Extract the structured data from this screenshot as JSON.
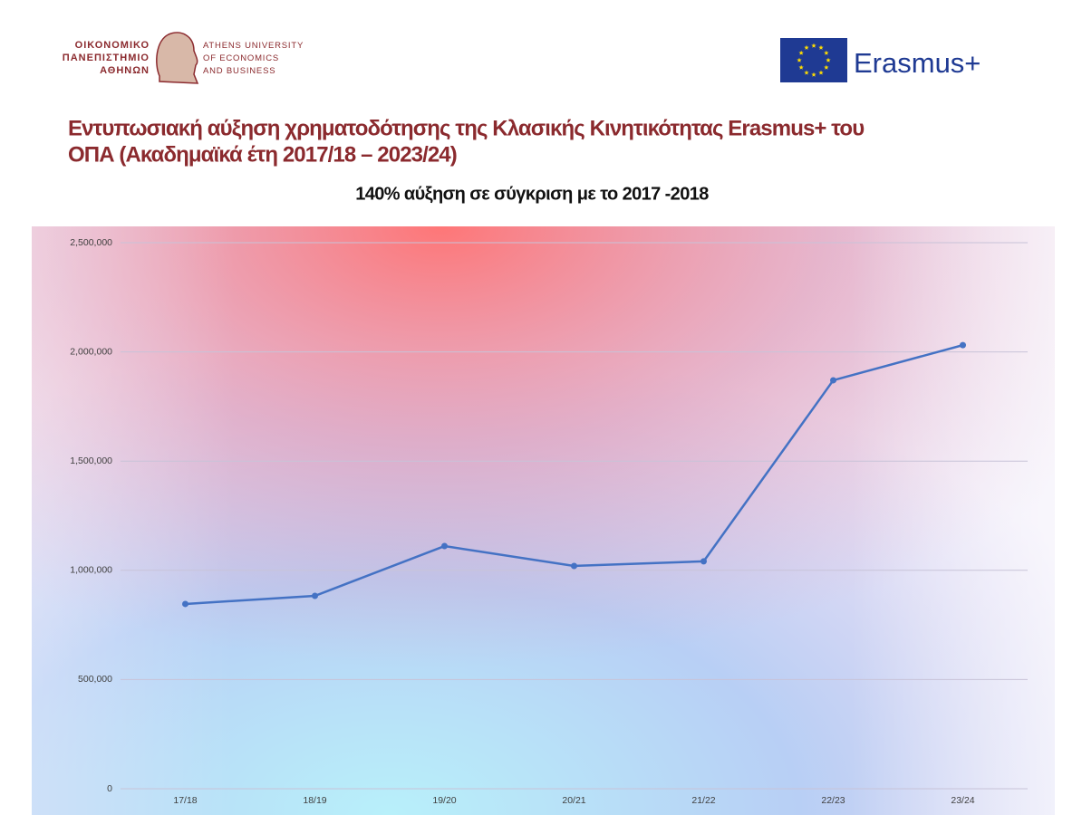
{
  "header": {
    "university_logo_greek": [
      "ΟΙΚΟΝΟΜΙΚΟ",
      "ΠΑΝΕΠΙΣΤΗΜΙΟ",
      "ΑΘΗΝΩΝ"
    ],
    "university_logo_english": [
      "ATHENS UNIVERSITY",
      "OF ECONOMICS",
      "AND BUSINESS"
    ],
    "program_logo": "Erasmus+",
    "slide_title": [
      "Εντυπωσιακή αύξηση χρηματοδότησης της Κλασικής Κινητικότητας Erasmus+ του",
      "ΟΠΑ (Ακαδημαϊκά έτη 2017/18 – 2023/24)"
    ]
  },
  "chart_data": {
    "type": "line",
    "title": "140% αύξηση σε σύγκριση με το 2017 -2018",
    "categories": [
      "17/18",
      "18/19",
      "19/20",
      "20/21",
      "21/22",
      "22/23",
      "23/24"
    ],
    "values": [
      846000,
      883000,
      1111000,
      1020000,
      1041000,
      1870000,
      2031000
    ],
    "color": "#4472c4",
    "ylim": [
      0,
      2500000
    ],
    "yticks": [
      0,
      {
        "value": 500000,
        "label": "500,000"
      },
      {
        "value": 1000000,
        "label": "1,000,000"
      },
      {
        "value": 1500000,
        "label": "1,500,000"
      },
      {
        "value": 2000000,
        "label": "2,000,000"
      },
      {
        "value": 2500000,
        "label": "2,500,000"
      }
    ],
    "grid": true
  }
}
